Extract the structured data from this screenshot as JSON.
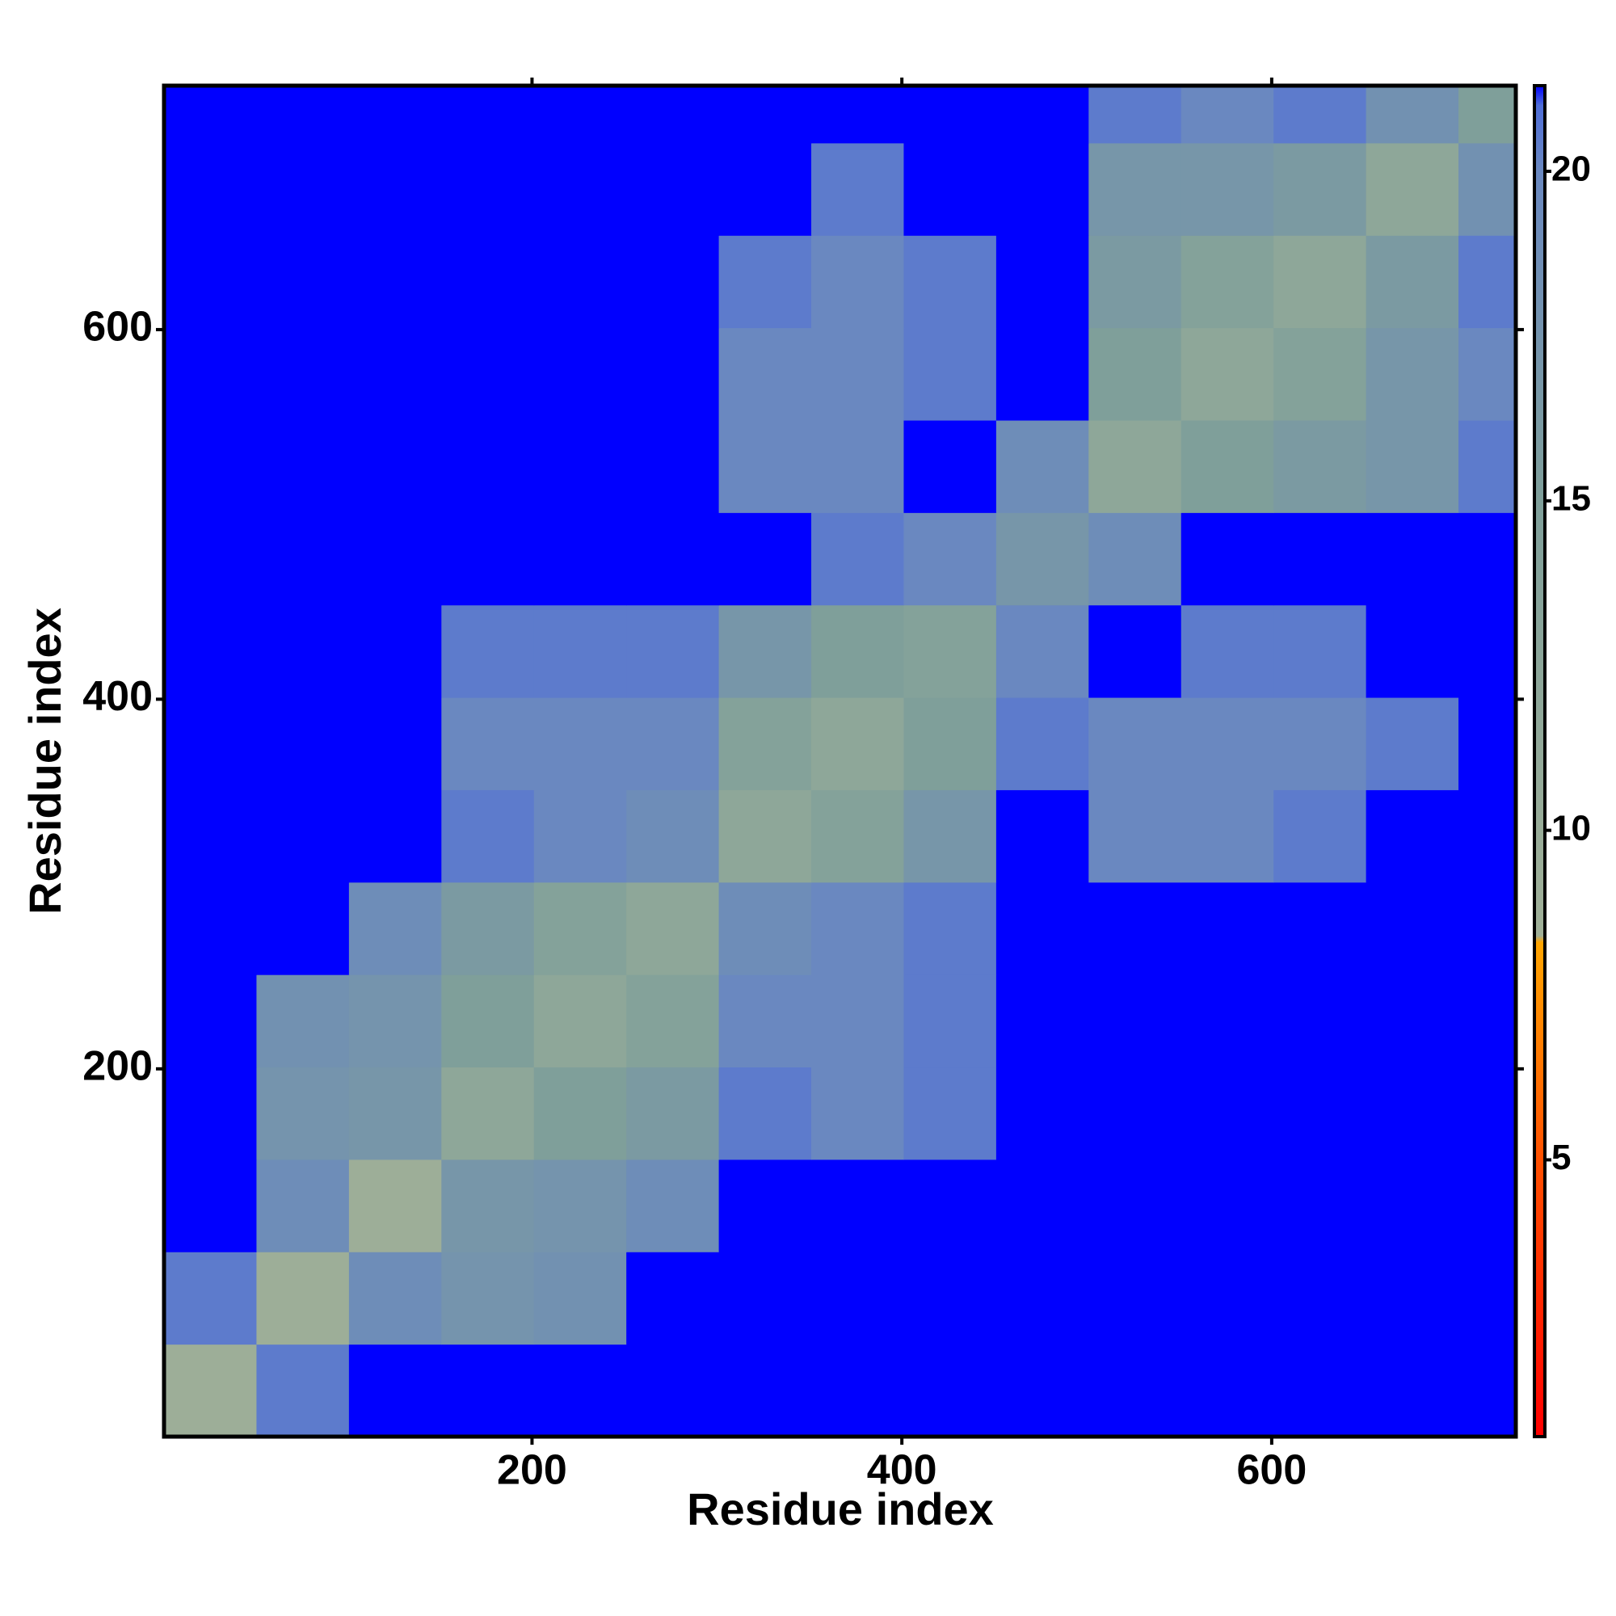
{
  "chart_data": {
    "type": "heatmap",
    "xlabel": "Residue index",
    "ylabel": "Residue index",
    "bins": [
      1,
      51,
      101,
      151,
      201,
      251,
      301,
      351,
      401,
      451,
      501,
      551,
      601,
      651,
      701,
      732
    ],
    "values": [
      [
        9,
        20.5,
        21.3,
        21.3,
        21.3,
        21.3,
        21.3,
        21.3,
        21.3,
        21.3,
        21.3,
        21.3,
        21.3,
        21.3,
        21.3
      ],
      [
        20.5,
        9,
        19,
        17.5,
        18,
        21.3,
        21.3,
        21.3,
        21.3,
        21.3,
        21.3,
        21.3,
        21.3,
        21.3,
        21.3
      ],
      [
        21.3,
        19,
        9,
        17,
        17.5,
        19,
        21.3,
        21.3,
        21.3,
        21.3,
        21.3,
        21.3,
        21.3,
        21.3,
        21.3
      ],
      [
        21.3,
        17.5,
        17,
        12,
        15,
        16,
        20.5,
        20,
        20.5,
        21.3,
        21.3,
        21.3,
        21.3,
        21.3,
        21.3
      ],
      [
        21.3,
        18,
        17.5,
        15,
        12,
        14,
        20,
        20,
        20.5,
        21.3,
        21.3,
        21.3,
        21.3,
        21.3,
        21.3
      ],
      [
        21.3,
        21.3,
        19,
        16,
        14,
        12,
        19,
        20,
        20.5,
        21.3,
        21.3,
        21.3,
        21.3,
        21.3,
        21.3
      ],
      [
        21.3,
        21.3,
        21.3,
        20.5,
        20,
        19,
        12,
        14,
        17,
        21.3,
        20,
        20,
        20.5,
        21.3,
        21.3
      ],
      [
        21.3,
        21.3,
        21.3,
        20,
        20,
        20,
        14,
        12,
        15,
        20.5,
        20,
        20,
        20,
        20.5,
        21.3
      ],
      [
        21.3,
        21.3,
        21.3,
        20.5,
        20.5,
        20.5,
        17,
        15,
        14,
        20,
        21.3,
        20.5,
        20.5,
        21.3,
        21.3
      ],
      [
        21.3,
        21.3,
        21.3,
        21.3,
        21.3,
        21.3,
        21.3,
        20.5,
        20,
        17,
        19,
        21.3,
        21.3,
        21.3,
        21.3
      ],
      [
        21.3,
        21.3,
        21.3,
        21.3,
        21.3,
        21.3,
        20,
        20,
        21.3,
        19,
        12,
        15,
        16,
        17,
        20.5
      ],
      [
        21.3,
        21.3,
        21.3,
        21.3,
        21.3,
        21.3,
        20,
        20,
        20.5,
        21.3,
        15,
        12,
        14,
        17,
        20
      ],
      [
        21.3,
        21.3,
        21.3,
        21.3,
        21.3,
        21.3,
        20.5,
        20,
        20.5,
        21.3,
        16,
        14,
        12,
        16,
        20.5
      ],
      [
        21.3,
        21.3,
        21.3,
        21.3,
        21.3,
        21.3,
        21.3,
        20.5,
        21.3,
        21.3,
        17,
        17,
        16,
        12,
        18
      ],
      [
        21.3,
        21.3,
        21.3,
        21.3,
        21.3,
        21.3,
        21.3,
        21.3,
        21.3,
        21.3,
        20.5,
        20,
        20.5,
        18,
        15
      ]
    ],
    "xlim": [
      1,
      732
    ],
    "ylim": [
      1,
      732
    ],
    "xticks": [
      200,
      400,
      600
    ],
    "yticks": [
      200,
      400,
      600
    ],
    "zlim": [
      0.8,
      21.3
    ],
    "zticks": [
      5,
      10,
      15,
      20
    ],
    "colorscale": [
      [
        0.8,
        "#ff0000"
      ],
      [
        5,
        "#ff5000"
      ],
      [
        8.3,
        "#ffa500"
      ],
      [
        8.4,
        "#a0b098"
      ],
      [
        15,
        "#7f9f9a"
      ],
      [
        20,
        "#6a88c0"
      ],
      [
        21,
        "#4f6ed8"
      ],
      [
        21.3,
        "#0000ff"
      ]
    ]
  }
}
